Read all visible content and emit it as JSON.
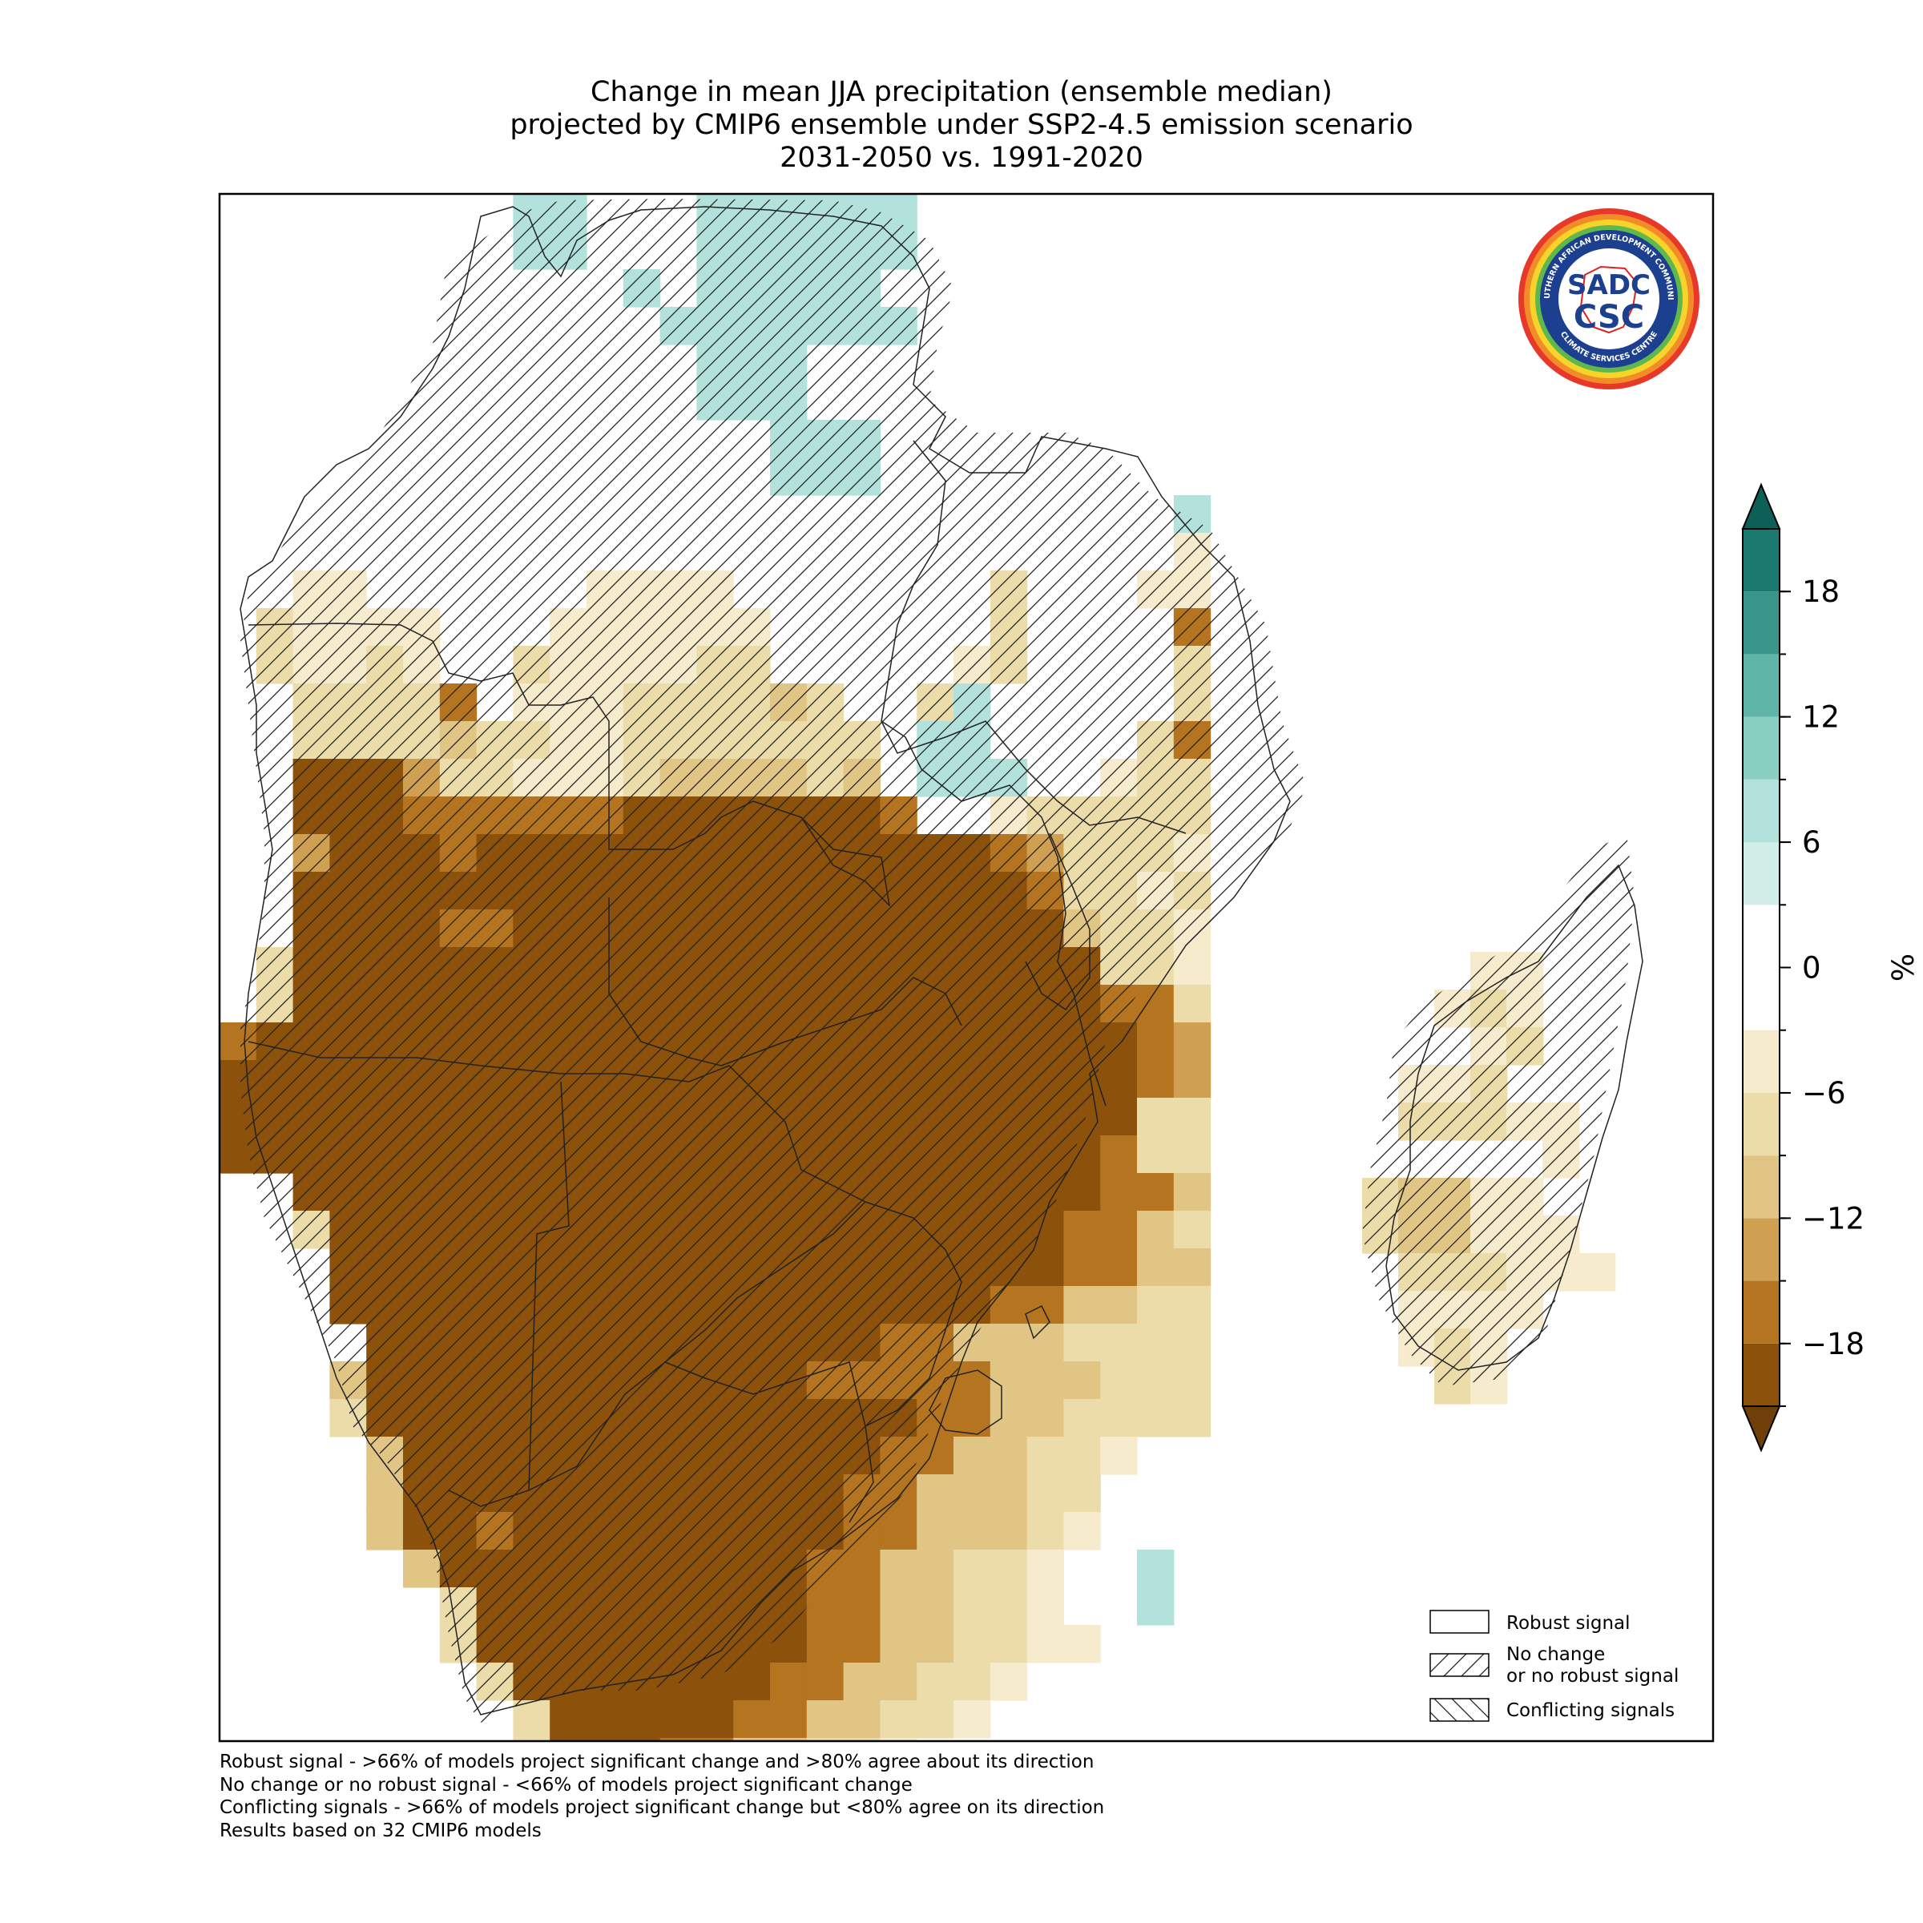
{
  "title": {
    "line1": "Change in mean JJA precipitation (ensemble median)",
    "line2": "projected by CMIP6 ensemble under SSP2-4.5 emission scenario",
    "line3": "2031-2050 vs. 1991-2020"
  },
  "logo": {
    "text_top": "SOUTHERN AFRICAN DEVELOPMENT COMMUNITY",
    "text_bottom": "CLIMATE SERVICES CENTRE",
    "mark1": "SADC",
    "mark2": "CSC"
  },
  "legend": {
    "robust": "Robust signal",
    "no_change_1": "No change",
    "no_change_2": "or no robust signal",
    "conflicting": "Conflicting signals"
  },
  "footnotes": [
    "Robust signal - >66% of models project significant change and >80% agree about its direction",
    "No change or no robust signal - <66% of models project significant change",
    "Conflicting signals - >66% of models project significant change but <80% agree on its direction",
    "Results based on 32 CMIP6 models"
  ],
  "colorbar": {
    "unit": "%",
    "ticks": [
      "18",
      "12",
      "6",
      "0",
      "−6",
      "−12",
      "−18"
    ],
    "tick_values": [
      18,
      12,
      6,
      0,
      -6,
      -12,
      -18
    ],
    "range": [
      -21,
      21
    ],
    "levels": [
      {
        "from": -21,
        "to": -18,
        "color": "#8c510a"
      },
      {
        "from": -18,
        "to": -15,
        "color": "#b5741f"
      },
      {
        "from": -15,
        "to": -12,
        "color": "#cfa051"
      },
      {
        "from": -12,
        "to": -9,
        "color": "#e0c584"
      },
      {
        "from": -9,
        "to": -6,
        "color": "#ecdcaa"
      },
      {
        "from": -6,
        "to": -3,
        "color": "#f6ebcd"
      },
      {
        "from": -3,
        "to": 3,
        "color": "#ffffff"
      },
      {
        "from": 3,
        "to": 6,
        "color": "#d3ede9"
      },
      {
        "from": 6,
        "to": 9,
        "color": "#b2e2db"
      },
      {
        "from": 9,
        "to": 12,
        "color": "#8ad0c2"
      },
      {
        "from": 12,
        "to": 15,
        "color": "#5eb5a8"
      },
      {
        "from": 15,
        "to": 18,
        "color": "#3a968b"
      },
      {
        "from": 18,
        "to": 21,
        "color": "#1a7a70"
      }
    ],
    "extend_low_color": "#6e3f08",
    "extend_high_color": "#0e5f57"
  },
  "map_colors": {
    "c0": "#ffffff",
    "c1": "#f6ebcd",
    "c2": "#ecdcaa",
    "c3": "#e0c584",
    "c4": "#cfa051",
    "c5": "#b5741f",
    "c6": "#8c510a",
    "t1": "#d3ede9",
    "t2": "#b2e2db",
    "t3": "#8ad0c2"
  }
}
